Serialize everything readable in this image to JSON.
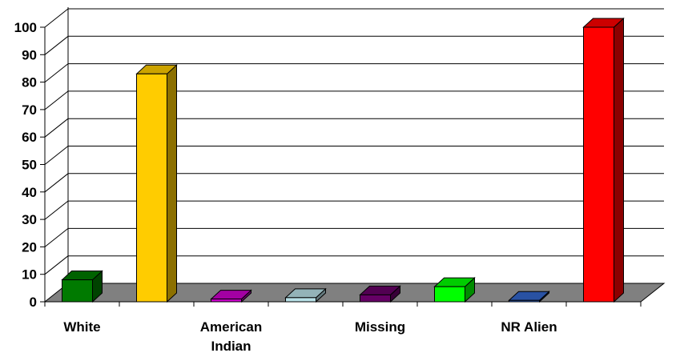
{
  "chart_data": {
    "type": "bar",
    "title": "",
    "xlabel": "",
    "ylabel": "",
    "ylim": [
      0,
      100
    ],
    "yticks": [
      "0",
      "10",
      "20",
      "30",
      "40",
      "50",
      "60",
      "70",
      "80",
      "90",
      "100"
    ],
    "grid": true,
    "three_d": true,
    "categories": [
      "White",
      "",
      "American Indian",
      "",
      "Missing",
      "",
      "NR Alien",
      ""
    ],
    "values": [
      8,
      83,
      1,
      1.5,
      2.5,
      5.5,
      0.5,
      100
    ],
    "colors": [
      "#007a00",
      "#ffcc00",
      "#cc00cc",
      "#b8e0e6",
      "#660066",
      "#00ff00",
      "#3366cc",
      "#ff0000"
    ]
  }
}
